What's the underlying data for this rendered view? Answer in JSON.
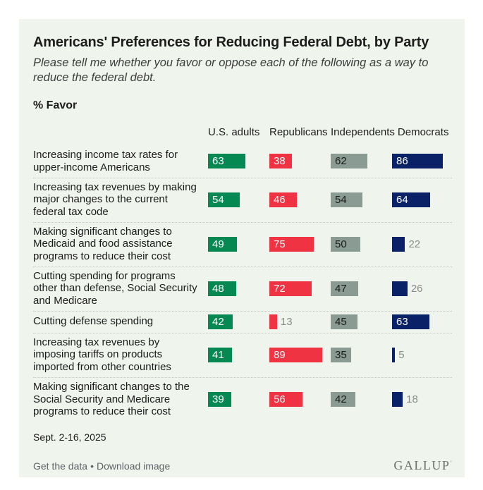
{
  "chart_data": {
    "type": "bar",
    "orientation": "horizontal",
    "title": "Americans' Preferences for Reducing Federal Debt, by Party",
    "subtitle": "Please tell me whether you favor or oppose each of the following as a way to reduce the federal debt.",
    "value_label": "% Favor",
    "xlim": [
      0,
      100
    ],
    "grid": false,
    "legend_position": "column-headers-top",
    "categories": [
      "Increasing income tax rates for upper-income Americans",
      "Increasing tax revenues by making major changes to the current federal tax code",
      "Making significant changes to Medicaid and food assistance programs to reduce their cost",
      "Cutting spending for programs other than defense, Social Security and Medicare",
      "Cutting defense spending",
      "Increasing tax revenues by imposing tariffs on products imported from other countries",
      "Making significant changes to the Social Security and Medicare programs to reduce their cost"
    ],
    "series": [
      {
        "name": "U.S. adults",
        "color": "#068853",
        "label_color": "#ffffff",
        "values": [
          63,
          54,
          49,
          48,
          42,
          41,
          39
        ]
      },
      {
        "name": "Republicans",
        "color": "#ef3343",
        "label_color": "#ffffff",
        "values": [
          38,
          46,
          75,
          72,
          13,
          89,
          56
        ]
      },
      {
        "name": "Independents",
        "color": "#8a9b94",
        "label_color": "#1a1a1a",
        "values": [
          62,
          54,
          50,
          47,
          45,
          35,
          42
        ]
      },
      {
        "name": "Democrats",
        "color": "#0a2168",
        "label_color": "#ffffff",
        "values": [
          86,
          64,
          22,
          26,
          63,
          5,
          18
        ]
      }
    ],
    "outside_label_color": "#8b8b8b",
    "outside_label_threshold": 30
  },
  "date": "Sept. 2-16, 2025",
  "footer": {
    "links": [
      "Get the data",
      "Download image"
    ],
    "separator": "•",
    "logo": "GALLUP",
    "logo_mark": "’"
  },
  "colors": {
    "card_background": "#eff4ec",
    "page_background": "#ffffff",
    "separator_dotted": "#c3c9c0",
    "footer_link": "#5f6368",
    "logo": "#6e7166"
  }
}
